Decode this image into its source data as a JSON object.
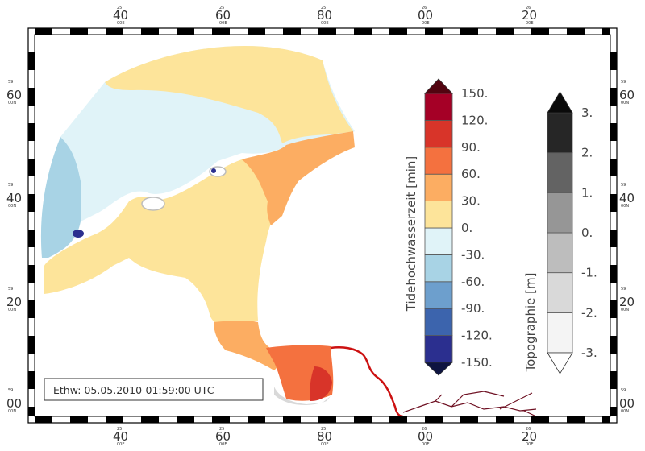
{
  "colors": {
    "tide_levels": [
      "#2b2f8f",
      "#3c64ad",
      "#6d9fcd",
      "#a8d3e5",
      "#e0f3f8",
      "#fde49a",
      "#fcad62",
      "#f4713f",
      "#d83429",
      "#a50026"
    ],
    "tide_upper_arrow": "#520410",
    "tide_lower_arrow": "#0e1440",
    "topo_levels": [
      "#f4f4f4",
      "#d9d9d9",
      "#bdbdbd",
      "#969696",
      "#636363",
      "#262626"
    ],
    "topo_upper_arrow": "#0a0a0a",
    "topo_lower_arrow": "#ffffff",
    "river": "#cc1111",
    "river_dark": "#6e1022"
  },
  "frame": {
    "top_ticks": [
      {
        "sub": "25",
        "main": "40",
        "sec": "00E"
      },
      {
        "sub": "25",
        "main": "60",
        "sec": "00E"
      },
      {
        "sub": "25",
        "main": "80",
        "sec": "00E"
      },
      {
        "sub": "26",
        "main": "00",
        "sec": "00E"
      },
      {
        "sub": "26",
        "main": "20",
        "sec": "00E"
      }
    ],
    "bottom_ticks": [
      {
        "sub": "25",
        "main": "40",
        "sec": "00E"
      },
      {
        "sub": "25",
        "main": "60",
        "sec": "00E"
      },
      {
        "sub": "25",
        "main": "80",
        "sec": "00E"
      },
      {
        "sub": "26",
        "main": "00",
        "sec": "00E"
      },
      {
        "sub": "26",
        "main": "20",
        "sec": "00E"
      }
    ],
    "side_ticks": [
      {
        "sub": "59",
        "main": "60",
        "sec": "00N"
      },
      {
        "sub": "59",
        "main": "40",
        "sec": "00N"
      },
      {
        "sub": "59",
        "main": "20",
        "sec": "00N"
      },
      {
        "sub": "59",
        "main": "00",
        "sec": "00N"
      }
    ]
  },
  "tide_colorbar": {
    "title": "Tidehochwasserzeit [min]",
    "ticks": [
      "150.",
      "120.",
      "90.",
      "60.",
      "30.",
      "0.",
      "-30.",
      "-60.",
      "-90.",
      "-120.",
      "-150."
    ]
  },
  "topo_colorbar": {
    "title": "Topographie [m]",
    "ticks": [
      "3.",
      "2.",
      "1.",
      "0.",
      "-1.",
      "-2.",
      "-3."
    ]
  },
  "timestamp": "Ethw: 05.05.2010-01:59:00 UTC"
}
